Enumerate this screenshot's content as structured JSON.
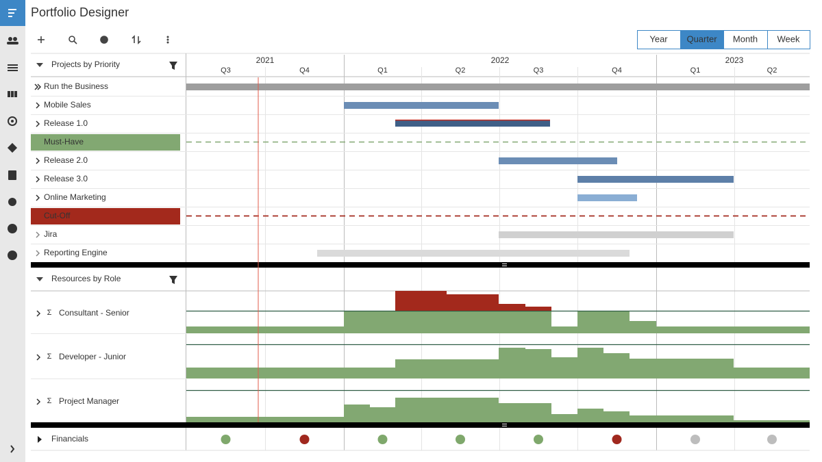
{
  "header": {
    "title": "Portfolio Designer"
  },
  "view_buttons": [
    "Year",
    "Quarter",
    "Month",
    "Week"
  ],
  "active_view": 1,
  "timeline": {
    "years": [
      "2021",
      "2022",
      "2023"
    ],
    "quarters": [
      "Q3",
      "Q4",
      "Q1",
      "Q2",
      "Q3",
      "Q4",
      "Q1",
      "Q2"
    ]
  },
  "projects": {
    "title": "Projects by Priority",
    "rows": [
      "Run the Business",
      "Mobile Sales",
      "Release 1.0",
      "Must-Have",
      "Release 2.0",
      "Release 3.0",
      "Online Marketing",
      "Cut-Off",
      "Jira",
      "Reporting Engine"
    ]
  },
  "resources": {
    "title": "Resources by Role",
    "rows": [
      "Consultant - Senior",
      "Developer - Junior",
      "Project Manager"
    ]
  },
  "financials": {
    "label": "Financials"
  }
}
